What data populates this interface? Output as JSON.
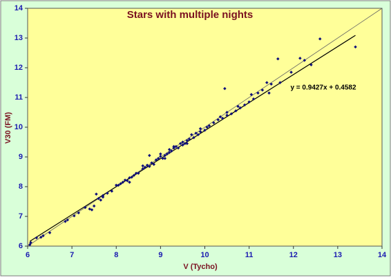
{
  "chart_data": {
    "type": "scatter",
    "title": "Stars with multiple nights",
    "x_label": "V (Tycho)",
    "y_label": "V30 (FM)",
    "xlim": [
      6,
      14
    ],
    "ylim": [
      6,
      14
    ],
    "xticks": [
      6,
      7,
      8,
      9,
      10,
      11,
      12,
      13,
      14
    ],
    "yticks": [
      6,
      7,
      8,
      9,
      10,
      11,
      12,
      13,
      14
    ],
    "color": "#10107a",
    "identity_line": true,
    "trendline": {
      "slope": 0.9427,
      "intercept": 0.4582,
      "label": "y = 0.9427x + 0.4582"
    },
    "x": [
      6.05,
      6.07,
      6.2,
      6.3,
      6.35,
      6.5,
      6.85,
      6.9,
      7.05,
      7.15,
      7.3,
      7.4,
      7.45,
      7.5,
      7.55,
      7.6,
      7.65,
      7.7,
      7.8,
      7.9,
      8.0,
      8.1,
      8.15,
      8.2,
      8.25,
      8.3,
      8.35,
      8.4,
      8.45,
      8.5,
      8.6,
      8.65,
      8.7,
      8.75,
      8.75,
      8.8,
      8.85,
      8.9,
      8.95,
      9.0,
      9.05,
      9.1,
      9.15,
      9.2,
      9.25,
      9.3,
      9.35,
      9.4,
      9.45,
      9.5,
      9.55,
      9.6,
      9.65,
      9.7,
      9.75,
      9.8,
      9.85,
      9.9,
      10.0,
      10.05,
      10.1,
      10.2,
      10.3,
      10.35,
      10.45,
      10.5,
      10.5,
      10.6,
      10.7,
      10.75,
      10.8,
      10.9,
      11.0,
      11.05,
      11.1,
      11.2,
      11.3,
      11.4,
      11.45,
      11.5,
      11.65,
      11.7,
      11.95,
      12.15,
      12.25,
      12.4,
      12.6,
      13.4,
      8.05,
      8.3,
      9.0,
      9.2,
      9.5,
      9.1,
      8.6,
      7.7,
      9.6,
      9.9,
      10.4,
      9.3
    ],
    "y": [
      6.05,
      6.12,
      6.28,
      6.3,
      6.35,
      6.45,
      6.83,
      6.88,
      7.02,
      7.12,
      7.3,
      7.25,
      7.22,
      7.35,
      7.75,
      7.6,
      7.55,
      7.7,
      7.78,
      7.85,
      8.05,
      8.1,
      8.15,
      8.22,
      8.2,
      8.3,
      8.32,
      8.38,
      8.45,
      8.45,
      8.6,
      8.65,
      8.72,
      9.05,
      8.68,
      8.8,
      8.75,
      8.9,
      8.95,
      9.02,
      8.95,
      9.05,
      9.1,
      9.15,
      9.2,
      9.3,
      9.35,
      9.3,
      9.45,
      9.5,
      9.45,
      9.55,
      9.6,
      9.75,
      9.65,
      9.8,
      9.75,
      9.85,
      9.9,
      10.0,
      10.05,
      10.15,
      10.25,
      10.35,
      11.3,
      10.5,
      10.4,
      10.45,
      10.55,
      10.7,
      10.65,
      10.75,
      10.85,
      11.1,
      10.95,
      11.15,
      11.25,
      11.5,
      11.15,
      11.45,
      12.3,
      11.5,
      11.85,
      12.32,
      12.25,
      12.1,
      12.97,
      12.7,
      8.05,
      8.15,
      9.1,
      9.25,
      9.4,
      8.95,
      8.7,
      7.65,
      9.45,
      9.95,
      10.3,
      9.35
    ]
  }
}
